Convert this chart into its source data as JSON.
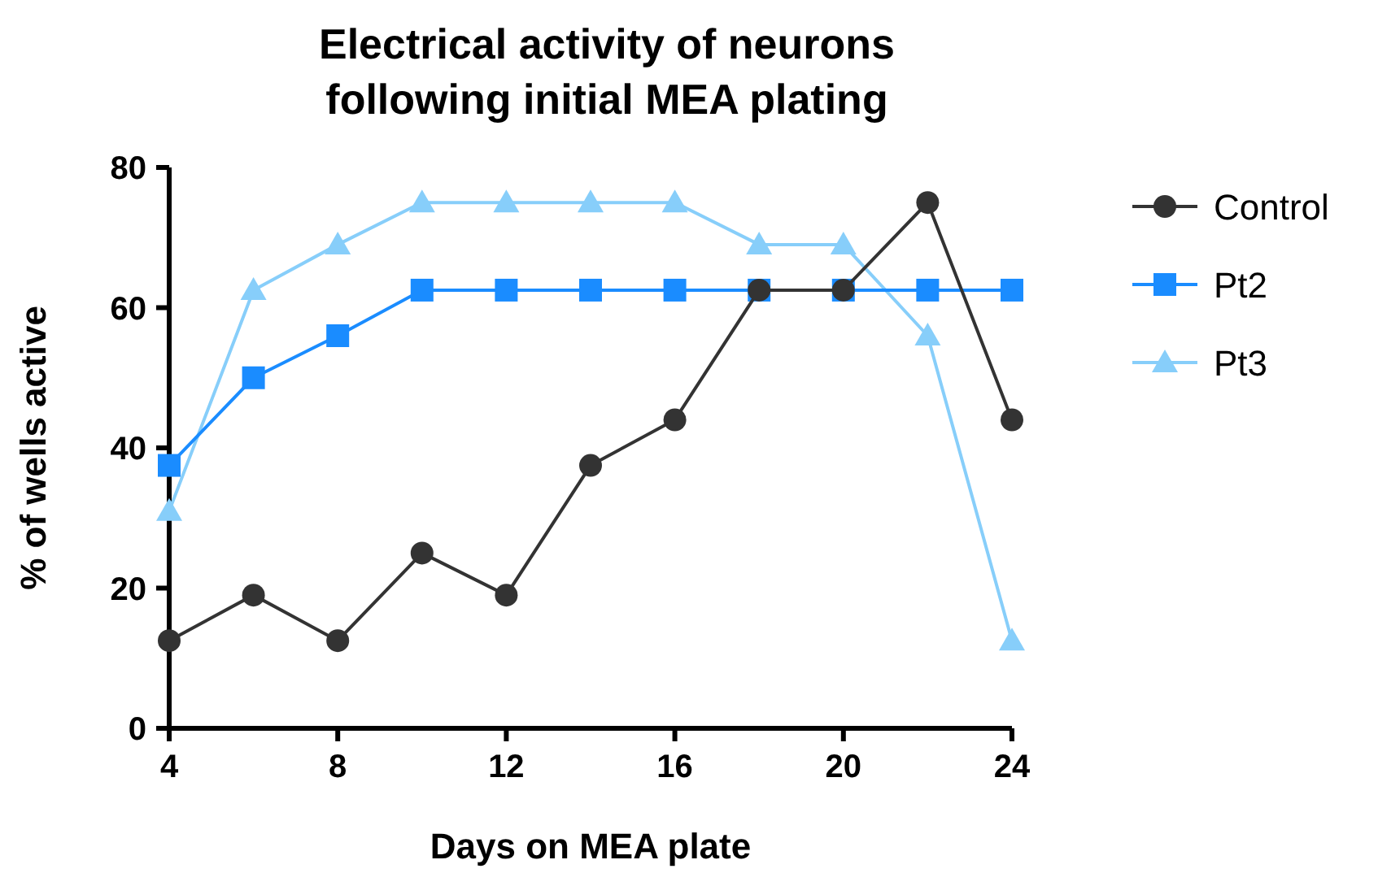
{
  "chart_data": {
    "type": "line",
    "title": "Electrical activity of neurons following initial MEA plating",
    "xlabel": "Days on MEA plate",
    "ylabel": "% of wells active",
    "x": [
      4,
      6,
      8,
      10,
      12,
      14,
      16,
      18,
      20,
      22,
      24
    ],
    "series": [
      {
        "name": "Control",
        "color": "#333333",
        "marker": "circle",
        "values": [
          12.5,
          19,
          12.5,
          25,
          19,
          37.5,
          44,
          62.5,
          62.5,
          75,
          44
        ]
      },
      {
        "name": "Pt2",
        "color": "#1a8cff",
        "marker": "square",
        "values": [
          37.5,
          50,
          56,
          62.5,
          62.5,
          62.5,
          62.5,
          62.5,
          62.5,
          62.5,
          62.5
        ]
      },
      {
        "name": "Pt3",
        "color": "#87cefa",
        "marker": "triangle",
        "values": [
          31,
          62.5,
          69,
          75,
          75,
          75,
          75,
          69,
          69,
          56,
          12.5
        ]
      }
    ],
    "xlim": [
      4,
      24
    ],
    "xticks": [
      4,
      8,
      12,
      16,
      20,
      24
    ],
    "ylim": [
      0,
      80
    ],
    "yticks": [
      0,
      20,
      40,
      60,
      80
    ],
    "grid": false,
    "legend": "top right",
    "line_style": "solid"
  }
}
